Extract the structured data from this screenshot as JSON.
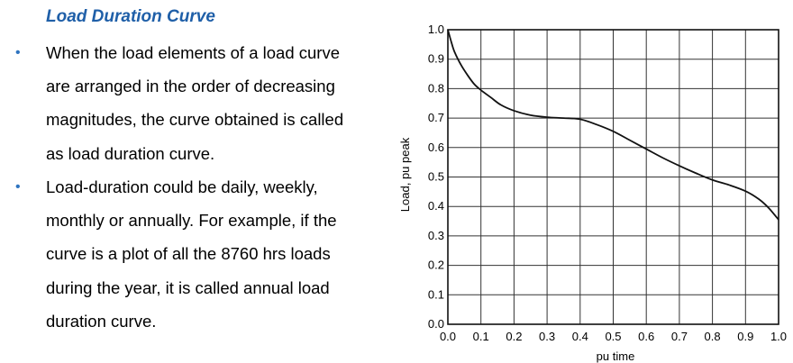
{
  "heading": "Load Duration Curve",
  "bullets": [
    {
      "lines": [
        "When the load elements of a load curve",
        "are arranged in the order of decreasing",
        "magnitudes, the curve obtained is called",
        "as load duration curve."
      ]
    },
    {
      "lines": [
        "Load-duration could be daily, weekly,",
        "monthly or annually. For example, if the",
        "curve is a plot of all the 8760 hrs loads",
        "during the year, it is called annual load",
        "duration curve."
      ]
    }
  ],
  "bullet_symbol": "•",
  "chart_data": {
    "type": "line",
    "xlabel": "pu time",
    "ylabel": "Load, pu peak",
    "xlim": [
      0,
      1
    ],
    "ylim": [
      0,
      1
    ],
    "grid": true,
    "x_ticks": [
      "0.0",
      "0.1",
      "0.2",
      "0.3",
      "0.4",
      "0.5",
      "0.6",
      "0.7",
      "0.8",
      "0.9",
      "1.0"
    ],
    "y_ticks": [
      "0.0",
      "0.1",
      "0.2",
      "0.3",
      "0.4",
      "0.5",
      "0.6",
      "0.7",
      "0.8",
      "0.9",
      "1.0"
    ],
    "series": [
      {
        "x": [
          0.0,
          0.01,
          0.02,
          0.04,
          0.06,
          0.08,
          0.1,
          0.13,
          0.16,
          0.2,
          0.25,
          0.3,
          0.35,
          0.4,
          0.45,
          0.5,
          0.55,
          0.6,
          0.65,
          0.7,
          0.75,
          0.8,
          0.85,
          0.9,
          0.94,
          0.97,
          1.0
        ],
        "y": [
          1.0,
          0.96,
          0.925,
          0.88,
          0.845,
          0.815,
          0.795,
          0.77,
          0.745,
          0.725,
          0.71,
          0.703,
          0.7,
          0.696,
          0.678,
          0.655,
          0.625,
          0.595,
          0.565,
          0.538,
          0.513,
          0.49,
          0.473,
          0.452,
          0.425,
          0.395,
          0.355
        ]
      }
    ],
    "colors": {
      "curve": "#111111",
      "grid": "#333333",
      "bullet": "#2e74c0",
      "heading": "#1f5fa8"
    }
  }
}
